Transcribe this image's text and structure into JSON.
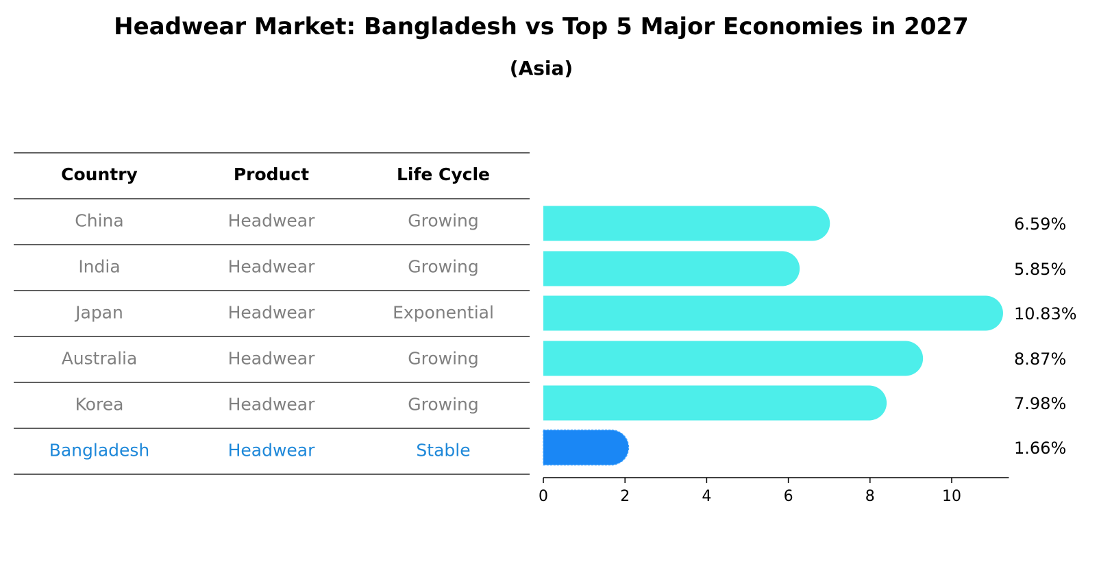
{
  "chart_data": {
    "type": "bar",
    "orientation": "horizontal",
    "title": "Headwear Market: Bangladesh vs Top 5 Major Economies in 2027",
    "subtitle": "(Asia)",
    "table": {
      "columns": [
        "Country",
        "Product",
        "Life Cycle"
      ],
      "rows": [
        [
          "China",
          "Headwear",
          "Growing"
        ],
        [
          "India",
          "Headwear",
          "Growing"
        ],
        [
          "Japan",
          "Headwear",
          "Exponential"
        ],
        [
          "Australia",
          "Headwear",
          "Growing"
        ],
        [
          "Korea",
          "Headwear",
          "Growing"
        ],
        [
          "Bangladesh",
          "Headwear",
          "Stable"
        ]
      ]
    },
    "categories": [
      "China",
      "India",
      "Japan",
      "Australia",
      "Korea",
      "Bangladesh"
    ],
    "values": [
      6.59,
      5.85,
      10.83,
      8.87,
      7.98,
      1.66
    ],
    "value_labels": [
      "6.59%",
      "5.85%",
      "10.83%",
      "8.87%",
      "7.98%",
      "1.66%"
    ],
    "highlight_index": 5,
    "xlim": [
      0,
      11.4
    ],
    "xticks": [
      0,
      2,
      4,
      6,
      8,
      10
    ],
    "xlabel": "",
    "ylabel": "",
    "grid": false,
    "colors": {
      "bar": "#4DEEEA",
      "highlight_bar": "#1A87F5",
      "row_text": "#808080",
      "highlight_text": "#1E88D9",
      "line": "#000000"
    }
  }
}
